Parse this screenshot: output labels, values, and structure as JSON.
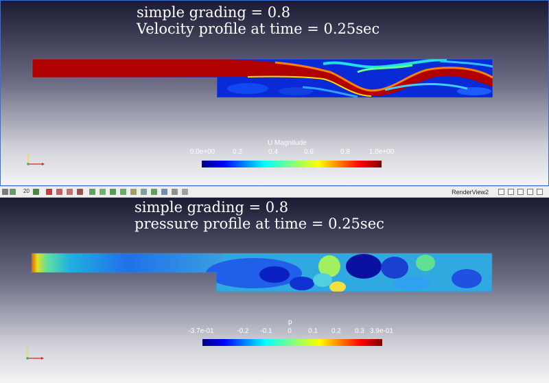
{
  "view1": {
    "title_line1": "simple grading = 0.8",
    "title_line2": "Velocity profile at time = 0.25sec",
    "colorbar": {
      "title": "U Magnitude",
      "ticks": [
        "0.0e+00",
        "0.2",
        "0.4",
        "0.6",
        "0.8",
        "1.0e+00"
      ],
      "colormap": "jet",
      "range": [
        0.0,
        1.0
      ]
    }
  },
  "view2": {
    "title_line1": "simple grading = 0.8",
    "title_line2": "pressure profile at time = 0.25sec",
    "colorbar": {
      "title": "p",
      "ticks": [
        "-3.7e-01",
        "-0.2",
        "-0.1",
        "0",
        "0.1",
        "0.2",
        "0.3",
        "3.9e-01"
      ],
      "colormap": "jet",
      "range": [
        -0.37,
        0.39
      ]
    }
  },
  "toolbar": {
    "view_label": "RenderView2",
    "frame_value": "20",
    "icons": [
      "camera-icon",
      "split-horizontal-icon",
      "split-vertical-icon",
      "maximize-icon",
      "close-icon"
    ]
  },
  "colors": {
    "jet_low": "#00007f",
    "jet_high": "#7f0000",
    "axis_x": "#d42020",
    "axis_y": "#e8e020",
    "axis_z": "#20c040"
  }
}
